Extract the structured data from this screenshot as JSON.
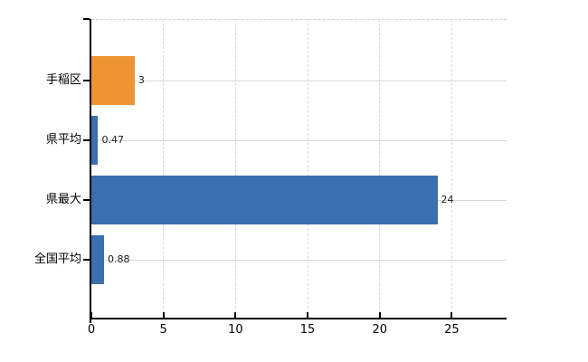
{
  "chart_data": {
    "type": "bar",
    "orientation": "horizontal",
    "title": "",
    "xlabel": "",
    "ylabel": "",
    "categories": [
      "手稲区",
      "県平均",
      "県最大",
      "全国平均"
    ],
    "values": [
      3,
      0.47,
      24,
      0.88
    ],
    "value_labels": [
      "3",
      "0.47",
      "24",
      "0.88"
    ],
    "bar_colors": [
      "#ee9434",
      "#3b6fae",
      "#3b6fae",
      "#3b6fae"
    ],
    "x_ticks": [
      0,
      5,
      10,
      15,
      20,
      25
    ],
    "x_tick_labels": [
      "0",
      "5",
      "10",
      "15",
      "20",
      "25"
    ],
    "xlim": [
      0,
      28.8
    ],
    "grid": true,
    "legend": null,
    "colors": {
      "background": "#ffffff",
      "axis": "#000000",
      "grid": "#d9d9d9",
      "value_label": "#1c1c1c",
      "tick_label": "#000000"
    }
  }
}
